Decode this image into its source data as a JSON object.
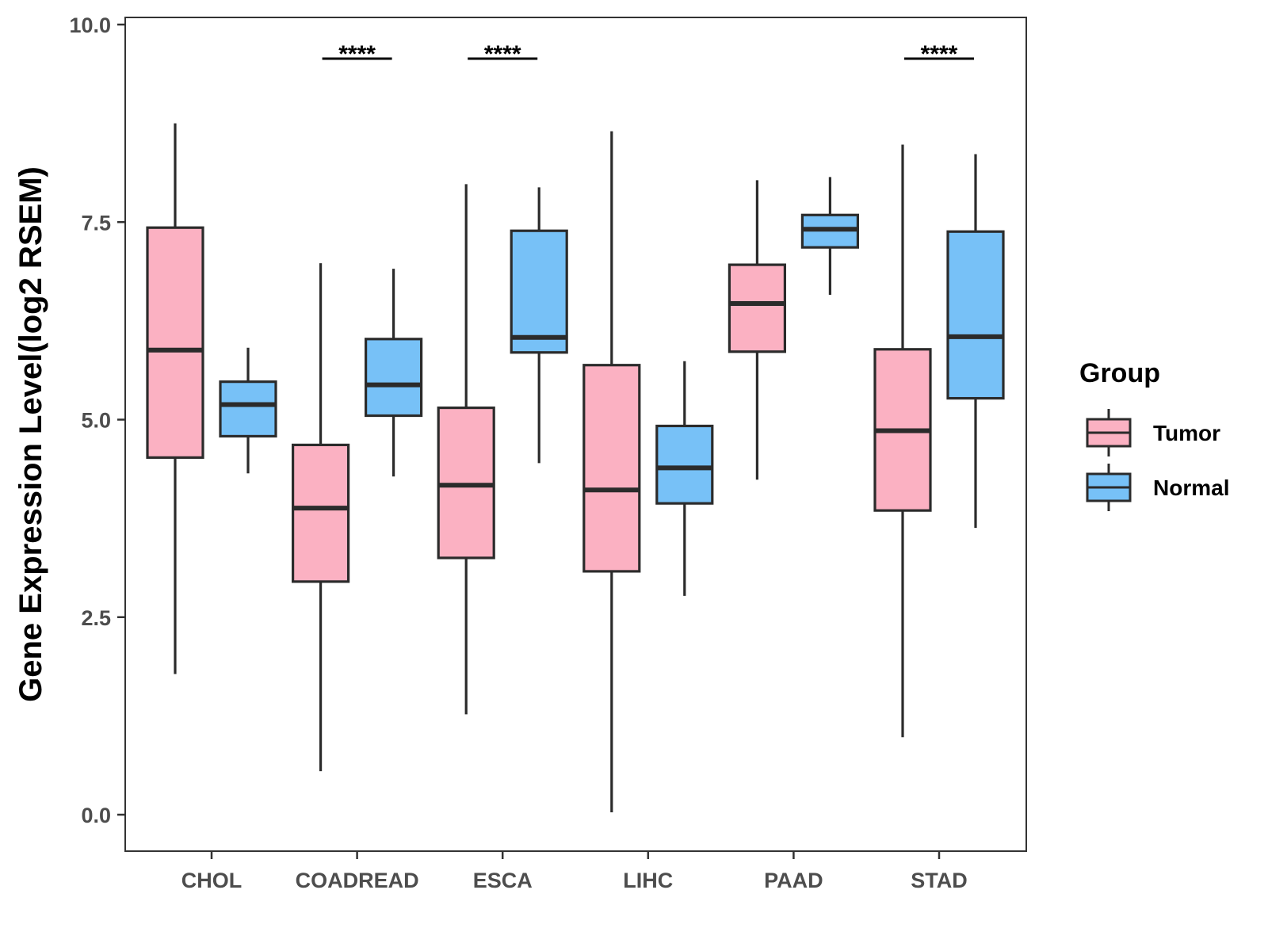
{
  "chart_data": {
    "type": "boxplot",
    "title": "",
    "xlabel": "",
    "ylabel": "Gene Expression Level(log2 RSEM)",
    "ylim": [
      -0.45,
      10.1
    ],
    "y_ticks": [
      0.0,
      2.5,
      5.0,
      7.5,
      10.0
    ],
    "y_tick_labels": [
      "0.0",
      "2.5",
      "5.0",
      "7.5",
      "10.0"
    ],
    "categories": [
      "CHOL",
      "COADREAD",
      "ESCA",
      "LIHC",
      "PAAD",
      "STAD"
    ],
    "legend": {
      "title": "Group",
      "position": "right",
      "entries": [
        {
          "name": "Tumor",
          "color": "#fbb1c2"
        },
        {
          "name": "Normal",
          "color": "#77c1f7"
        }
      ]
    },
    "series": [
      {
        "name": "Tumor",
        "color": "#fbb1c2",
        "boxes": [
          {
            "category": "CHOL",
            "min": 1.78,
            "q1": 4.52,
            "median": 5.88,
            "q3": 7.43,
            "max": 8.75
          },
          {
            "category": "COADREAD",
            "min": 0.55,
            "q1": 2.95,
            "median": 3.88,
            "q3": 4.68,
            "max": 6.98
          },
          {
            "category": "ESCA",
            "min": 1.27,
            "q1": 3.25,
            "median": 4.17,
            "q3": 5.15,
            "max": 7.98
          },
          {
            "category": "LIHC",
            "min": 0.03,
            "q1": 3.08,
            "median": 4.11,
            "q3": 5.69,
            "max": 8.65
          },
          {
            "category": "PAAD",
            "min": 4.24,
            "q1": 5.86,
            "median": 6.47,
            "q3": 6.96,
            "max": 8.03
          },
          {
            "category": "STAD",
            "min": 0.98,
            "q1": 3.85,
            "median": 4.86,
            "q3": 5.89,
            "max": 8.48
          }
        ]
      },
      {
        "name": "Normal",
        "color": "#77c1f7",
        "boxes": [
          {
            "category": "CHOL",
            "min": 4.32,
            "q1": 4.79,
            "median": 5.19,
            "q3": 5.48,
            "max": 5.91
          },
          {
            "category": "COADREAD",
            "min": 4.28,
            "q1": 5.05,
            "median": 5.44,
            "q3": 6.02,
            "max": 6.91
          },
          {
            "category": "ESCA",
            "min": 4.45,
            "q1": 5.85,
            "median": 6.04,
            "q3": 7.39,
            "max": 7.94
          },
          {
            "category": "LIHC",
            "min": 2.77,
            "q1": 3.94,
            "median": 4.39,
            "q3": 4.92,
            "max": 5.74
          },
          {
            "category": "PAAD",
            "min": 6.58,
            "q1": 7.18,
            "median": 7.41,
            "q3": 7.59,
            "max": 8.07
          },
          {
            "category": "STAD",
            "min": 3.63,
            "q1": 5.27,
            "median": 6.05,
            "q3": 7.38,
            "max": 8.36
          }
        ]
      }
    ],
    "annotations": [
      {
        "category": "COADREAD",
        "text": "****"
      },
      {
        "category": "ESCA",
        "text": "****"
      },
      {
        "category": "STAD",
        "text": "****"
      }
    ]
  }
}
